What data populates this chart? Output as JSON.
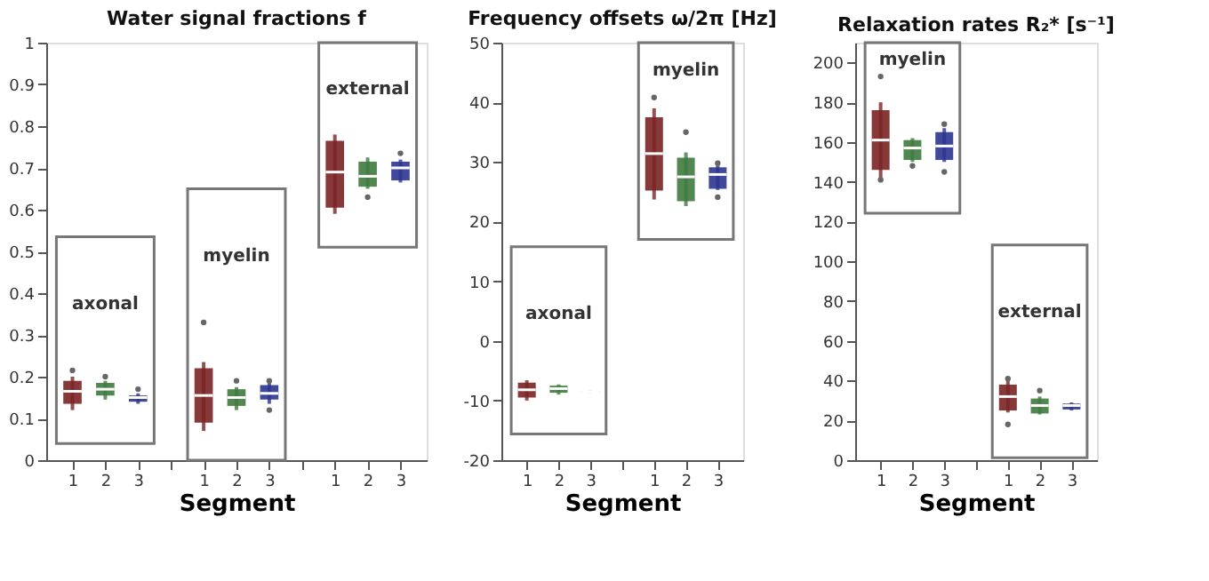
{
  "chart_data": [
    {
      "type": "box",
      "title": "Water signal fractions f",
      "xlabel": "Segment",
      "categories": [
        "1",
        "2",
        "3",
        null,
        "1",
        "2",
        "3",
        null,
        "1",
        "2",
        "3"
      ],
      "ylim": [
        0,
        1
      ],
      "yticks": [
        0,
        0.1,
        0.2,
        0.3,
        0.4,
        0.5,
        0.6,
        0.7,
        0.8,
        0.9,
        1
      ],
      "grid": false,
      "annotations": [
        "axonal",
        "myelin",
        "external"
      ],
      "colors": [
        "#7a2424",
        "#3f7a3f",
        "#2c3590",
        null,
        "#7a2424",
        "#3f7a3f",
        "#2c3590",
        null,
        "#7a2424",
        "#3f7a3f",
        "#2c3590"
      ],
      "boxes": [
        {
          "low": 0.12,
          "q1": 0.135,
          "median": 0.165,
          "q3": 0.19,
          "high": 0.2,
          "outliers": [
            0.215
          ]
        },
        {
          "low": 0.145,
          "q1": 0.155,
          "median": 0.17,
          "q3": 0.185,
          "high": 0.19,
          "outliers": [
            0.2
          ]
        },
        {
          "low": 0.135,
          "q1": 0.14,
          "median": 0.15,
          "q3": 0.155,
          "high": 0.16,
          "outliers": [
            0.17
          ]
        },
        null,
        {
          "low": 0.07,
          "q1": 0.09,
          "median": 0.155,
          "q3": 0.22,
          "high": 0.235,
          "outliers": [
            0.33
          ]
        },
        {
          "low": 0.12,
          "q1": 0.13,
          "median": 0.15,
          "q3": 0.17,
          "high": 0.175,
          "outliers": [
            0.19
          ]
        },
        {
          "low": 0.135,
          "q1": 0.145,
          "median": 0.16,
          "q3": 0.18,
          "high": 0.185,
          "outliers": [
            0.12,
            0.19
          ]
        },
        null,
        {
          "low": 0.59,
          "q1": 0.605,
          "median": 0.69,
          "q3": 0.765,
          "high": 0.78
        },
        {
          "low": 0.65,
          "q1": 0.655,
          "median": 0.68,
          "q3": 0.715,
          "high": 0.725,
          "outliers": [
            0.63
          ]
        },
        {
          "low": 0.665,
          "q1": 0.67,
          "median": 0.7,
          "q3": 0.715,
          "high": 0.72,
          "outliers": [
            0.735
          ]
        }
      ]
    },
    {
      "type": "box",
      "title": "Frequency offsets ω/2π [Hz]",
      "xlabel": "Segment",
      "categories": [
        "1",
        "2",
        "3",
        null,
        "1",
        "2",
        "3"
      ],
      "ylim": [
        -20,
        50
      ],
      "yticks": [
        -20,
        -10,
        0,
        10,
        20,
        30,
        40,
        50
      ],
      "grid": false,
      "annotations": [
        "axonal",
        "myelin"
      ],
      "colors": [
        "#7a2424",
        "#3f7a3f",
        "#777777",
        null,
        "#7a2424",
        "#3f7a3f",
        "#2c3590"
      ],
      "boxes": [
        {
          "low": -10,
          "q1": -9.5,
          "median": -8.2,
          "q3": -7,
          "high": -6.6
        },
        {
          "low": -9,
          "q1": -8.7,
          "median": -8,
          "q3": -7.5,
          "high": -7.3
        },
        {
          "low": -8.7,
          "q1": -8.6,
          "median": -8.5,
          "q3": -8.4,
          "high": -8.3
        },
        null,
        {
          "low": 23.7,
          "q1": 25.2,
          "median": 31.4,
          "q3": 37.5,
          "high": 39,
          "outliers": [
            40.8
          ]
        },
        {
          "low": 22.6,
          "q1": 23.4,
          "median": 27.5,
          "q3": 30.7,
          "high": 31.6,
          "outliers": [
            35
          ]
        },
        {
          "low": 25.3,
          "q1": 25.5,
          "median": 27.9,
          "q3": 29.1,
          "high": 29.4,
          "outliers": [
            24.1,
            29.8
          ]
        }
      ]
    },
    {
      "type": "box",
      "title": "Relaxation rates R₂* [s⁻¹]",
      "xlabel": "Segment",
      "categories": [
        "1",
        "2",
        "3",
        null,
        "1",
        "2",
        "3"
      ],
      "ylim": [
        0,
        210
      ],
      "yticks": [
        0,
        20,
        40,
        60,
        80,
        100,
        120,
        140,
        160,
        180,
        200
      ],
      "grid": false,
      "annotations": [
        "myelin",
        "external"
      ],
      "colors": [
        "#7a2424",
        "#3f7a3f",
        "#2c3590",
        null,
        "#7a2424",
        "#3f7a3f",
        "#2c3590"
      ],
      "boxes": [
        {
          "low": 142,
          "q1": 146,
          "median": 161,
          "q3": 176,
          "high": 180,
          "outliers": [
            193,
            141
          ]
        },
        {
          "low": 150,
          "q1": 151,
          "median": 157,
          "q3": 161,
          "high": 162,
          "outliers": [
            148
          ]
        },
        {
          "low": 150,
          "q1": 151,
          "median": 158,
          "q3": 165,
          "high": 167,
          "outliers": [
            169,
            145
          ]
        },
        null,
        {
          "low": 24,
          "q1": 25,
          "median": 32,
          "q3": 38,
          "high": 40,
          "outliers": [
            41,
            18
          ]
        },
        {
          "low": 23,
          "q1": 23.5,
          "median": 27.5,
          "q3": 31,
          "high": 32,
          "outliers": [
            35
          ]
        },
        {
          "low": 25,
          "q1": 25.5,
          "median": 27.5,
          "q3": 28.5,
          "high": 29
        }
      ]
    }
  ]
}
